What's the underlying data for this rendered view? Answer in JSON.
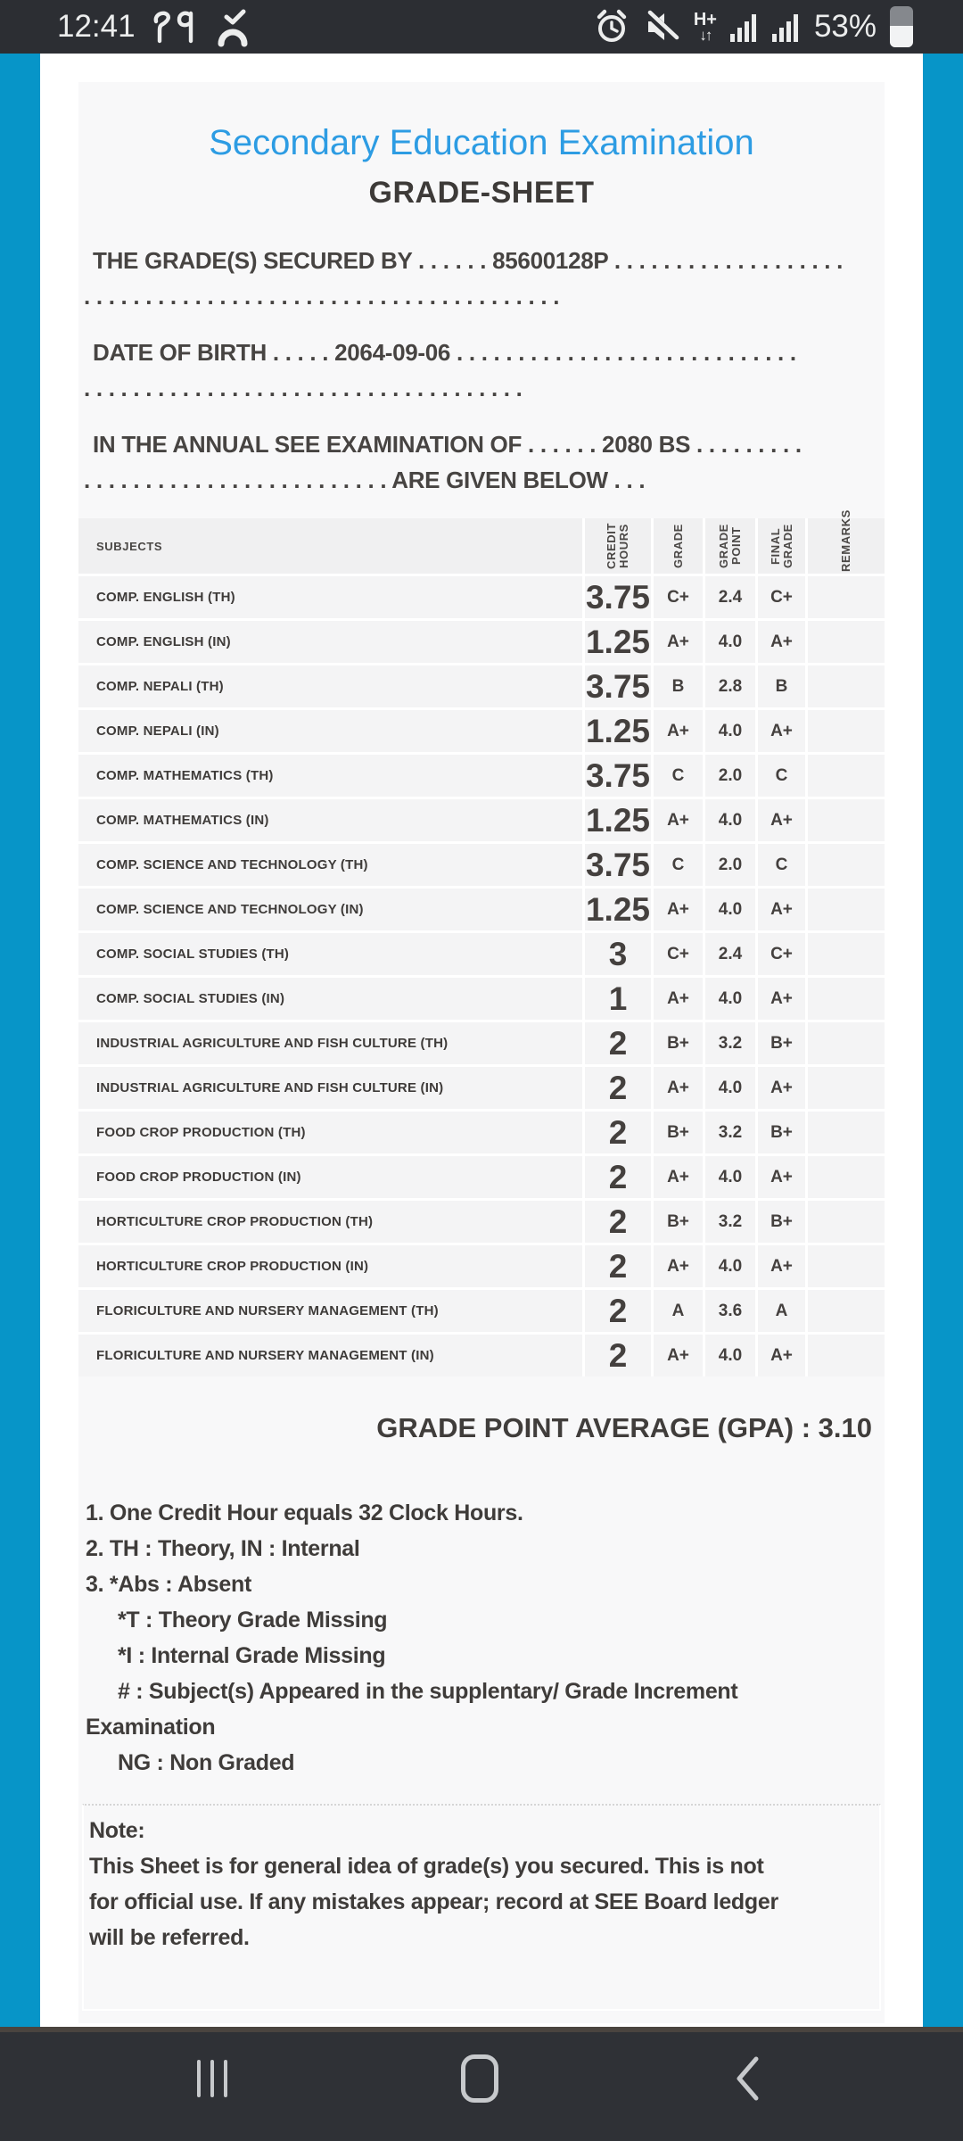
{
  "status_bar": {
    "time": "12:41",
    "badge_text": "२४",
    "network_mode": "H+",
    "network_arrows": "↓↑",
    "battery_percent": "53%"
  },
  "document": {
    "title": "Secondary Education Examination",
    "heading": "GRADE-SHEET",
    "intro": [
      {
        "lines": [
          "THE GRADE(S) SECURED BY . . . . . . 85600128P . . . . . . . . . . . . . . . . . . .",
          ". . . . . . . . . . . . . . . . . . . . . . . . . . . . . . . . . . . . . . ."
        ]
      },
      {
        "lines": [
          "DATE OF BIRTH . . . . . 2064-09-06 . . . . . . . . . . . . . . . . . . . . . . . . . . . .",
          ". . . . . . . . . . . . . . . . . . . . . . . . . . . . . . . . . . . ."
        ]
      },
      {
        "lines": [
          "IN THE ANNUAL SEE EXAMINATION OF . . . . . . 2080 BS . . . . . . . . .",
          ". . . . . . . . . . . . . . . . . . . . . . . . . ARE GIVEN BELOW . . ."
        ]
      }
    ]
  },
  "table": {
    "headers": {
      "subjects": "SUBJECTS",
      "credit": "CREDIT HOURS",
      "grade": "GRADE",
      "point": "GRADE POINT",
      "final": "FINAL GRADE",
      "remarks": "REMARKS"
    },
    "rows": [
      [
        "COMP. ENGLISH (TH)",
        "3.75",
        "C+",
        "2.4",
        "C+",
        ""
      ],
      [
        "COMP. ENGLISH (IN)",
        "1.25",
        "A+",
        "4.0",
        "A+",
        ""
      ],
      [
        "COMP. NEPALI (TH)",
        "3.75",
        "B",
        "2.8",
        "B",
        ""
      ],
      [
        "COMP. NEPALI (IN)",
        "1.25",
        "A+",
        "4.0",
        "A+",
        ""
      ],
      [
        "COMP. MATHEMATICS (TH)",
        "3.75",
        "C",
        "2.0",
        "C",
        ""
      ],
      [
        "COMP. MATHEMATICS (IN)",
        "1.25",
        "A+",
        "4.0",
        "A+",
        ""
      ],
      [
        "COMP. SCIENCE AND TECHNOLOGY (TH)",
        "3.75",
        "C",
        "2.0",
        "C",
        ""
      ],
      [
        "COMP. SCIENCE AND TECHNOLOGY (IN)",
        "1.25",
        "A+",
        "4.0",
        "A+",
        ""
      ],
      [
        "COMP. SOCIAL STUDIES (TH)",
        "3",
        "C+",
        "2.4",
        "C+",
        ""
      ],
      [
        "COMP. SOCIAL STUDIES (IN)",
        "1",
        "A+",
        "4.0",
        "A+",
        ""
      ],
      [
        "INDUSTRIAL AGRICULTURE AND FISH CULTURE (TH)",
        "2",
        "B+",
        "3.2",
        "B+",
        ""
      ],
      [
        "INDUSTRIAL AGRICULTURE AND FISH CULTURE (IN)",
        "2",
        "A+",
        "4.0",
        "A+",
        ""
      ],
      [
        "FOOD CROP PRODUCTION (TH)",
        "2",
        "B+",
        "3.2",
        "B+",
        ""
      ],
      [
        "FOOD CROP PRODUCTION (IN)",
        "2",
        "A+",
        "4.0",
        "A+",
        ""
      ],
      [
        "HORTICULTURE CROP PRODUCTION (TH)",
        "2",
        "B+",
        "3.2",
        "B+",
        ""
      ],
      [
        "HORTICULTURE CROP PRODUCTION (IN)",
        "2",
        "A+",
        "4.0",
        "A+",
        ""
      ],
      [
        "FLORICULTURE AND NURSERY MANAGEMENT (TH)",
        "2",
        "A",
        "3.6",
        "A",
        ""
      ],
      [
        "FLORICULTURE AND NURSERY MANAGEMENT (IN)",
        "2",
        "A+",
        "4.0",
        "A+",
        ""
      ]
    ],
    "gpa_text": "GRADE POINT AVERAGE (GPA) : 3.10"
  },
  "footnotes": [
    {
      "text": "1. One Credit Hour equals 32 Clock Hours.",
      "indent": false
    },
    {
      "text": "2. TH : Theory, IN : Internal",
      "indent": false
    },
    {
      "text": "3. *Abs : Absent",
      "indent": false
    },
    {
      "text": "*T : Theory Grade Missing",
      "indent": true
    },
    {
      "text": "*I : Internal Grade Missing",
      "indent": true
    },
    {
      "text": "# : Subject(s) Appeared in the supplentary/ Grade Increment",
      "indent": true
    },
    {
      "text": "Examination",
      "indent": false
    },
    {
      "text": "NG : Non Graded",
      "indent": true
    }
  ],
  "note": {
    "heading": "Note:",
    "lines": [
      "This Sheet is for general idea of grade(s) you secured. This is not",
      "for official use. If any mistakes appear; record at SEE Board ledger",
      "will be referred."
    ]
  },
  "colors": {
    "side_stripe": "#0795c8",
    "title_blue": "#2d9ce3",
    "status_bar_bg": "#2c2e33",
    "nav_bar_bg": "#2f3136",
    "paper_bg": "#f8f8f9",
    "text_dark": "#3e3b39"
  }
}
